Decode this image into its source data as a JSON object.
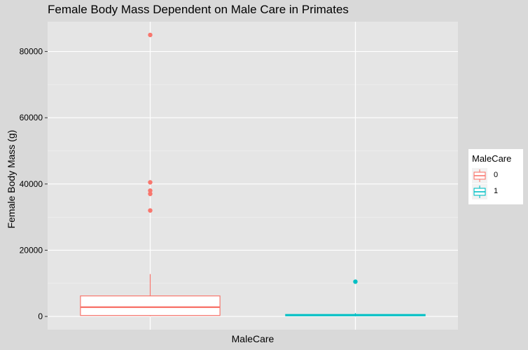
{
  "chart_data": {
    "type": "box",
    "title": "Female Body Mass Dependent on Male Care in Primates",
    "xlabel": "MaleCare",
    "ylabel": "Female Body Mass (g)",
    "ylim": [
      -4000,
      89000
    ],
    "yticks": [
      0,
      20000,
      40000,
      60000,
      80000
    ],
    "ytick_labels": [
      "0",
      "20000",
      "40000",
      "60000",
      "80000"
    ],
    "x_tick_labels_shown": false,
    "grid": true,
    "legend": {
      "title": "MaleCare",
      "placement": "right",
      "entries": [
        "0",
        "1"
      ]
    },
    "series": [
      {
        "name": "0",
        "color": "#F8766D",
        "q1": 300,
        "median": 2800,
        "q3": 6200,
        "whisker_low": 100,
        "whisker_high": 12800,
        "outliers": [
          32000,
          37000,
          38000,
          40500,
          85000
        ]
      },
      {
        "name": "1",
        "color": "#00BFC4",
        "q1": 200,
        "median": 400,
        "q3": 600,
        "whisker_low": 50,
        "whisker_high": 1000,
        "outliers": [
          10500
        ]
      }
    ]
  }
}
